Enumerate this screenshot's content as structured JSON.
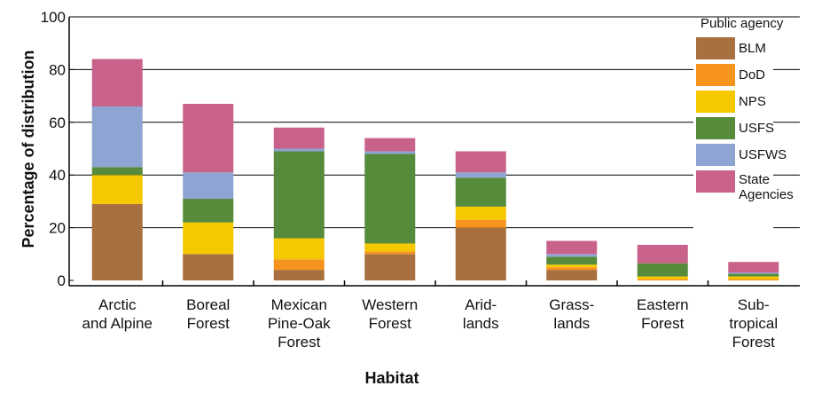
{
  "chart_data": {
    "type": "bar",
    "stacked": true,
    "title": "",
    "xlabel": "Habitat",
    "ylabel": "Percentage of distribution",
    "ylim": [
      0,
      100
    ],
    "yticks": [
      0,
      20,
      40,
      60,
      80,
      100
    ],
    "grid": "horizontal",
    "legend_title": "Public agency",
    "legend_position": "right",
    "categories": [
      [
        "Arctic",
        "and Alpine"
      ],
      [
        "Boreal",
        "Forest"
      ],
      [
        "Mexican",
        "Pine-Oak",
        "Forest"
      ],
      [
        "Western",
        "Forest"
      ],
      [
        "Arid-",
        "lands"
      ],
      [
        "Grass-",
        "lands"
      ],
      [
        "Eastern",
        "Forest"
      ],
      [
        "Sub-",
        "tropical",
        "Forest"
      ]
    ],
    "series": [
      {
        "name": "BLM",
        "legend_lines": [
          "BLM"
        ],
        "color": "#A8703E",
        "values": [
          29,
          10,
          4,
          10,
          20,
          4,
          0,
          0
        ]
      },
      {
        "name": "DoD",
        "legend_lines": [
          "DoD"
        ],
        "color": "#F7941D",
        "values": [
          0,
          0,
          4,
          1,
          3,
          1,
          0.5,
          0.5
        ]
      },
      {
        "name": "NPS",
        "legend_lines": [
          "NPS"
        ],
        "color": "#F5C800",
        "values": [
          11,
          12,
          8,
          3,
          5,
          1,
          1,
          1
        ]
      },
      {
        "name": "USFS",
        "legend_lines": [
          "USFS"
        ],
        "color": "#558B3B",
        "values": [
          3,
          9,
          33,
          34,
          11,
          3,
          5,
          1
        ]
      },
      {
        "name": "USFWS",
        "legend_lines": [
          "USFWS"
        ],
        "color": "#8EA4D2",
        "values": [
          23,
          10,
          1,
          1,
          2,
          1,
          0,
          0.5
        ]
      },
      {
        "name": "State Agencies",
        "legend_lines": [
          "State",
          "Agencies"
        ],
        "color": "#C9628B",
        "values": [
          18,
          26,
          8,
          5,
          8,
          5,
          7,
          4
        ]
      }
    ]
  }
}
